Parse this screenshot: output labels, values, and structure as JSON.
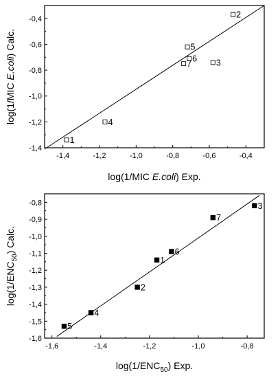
{
  "chart_data": [
    {
      "type": "scatter",
      "marker": "open-square",
      "xlabel": {
        "prefix": "log(1/MIC ",
        "italic": "E.coli",
        "suffix": ") Exp."
      },
      "ylabel": {
        "prefix": "log(1/MIC ",
        "italic": "E.coli",
        "suffix": ") Calc."
      },
      "xlim": [
        -1.5,
        -0.3
      ],
      "ylim": [
        -1.4,
        -0.3
      ],
      "xticks": [
        "-1,4",
        "-1,2",
        "-1,0",
        "-0,8",
        "-0,6",
        "-0,4"
      ],
      "xtick_values": [
        -1.4,
        -1.2,
        -1.0,
        -0.8,
        -0.6,
        -0.4
      ],
      "yticks": [
        "-1,4",
        "-1,2",
        "-1,0",
        "-0,8",
        "-0,6",
        "-0,4"
      ],
      "ytick_values": [
        -1.4,
        -1.2,
        -1.0,
        -0.8,
        -0.6,
        -0.4
      ],
      "grid": false,
      "points": [
        {
          "label": "1",
          "x": -1.38,
          "y": -1.34
        },
        {
          "label": "2",
          "x": -0.47,
          "y": -0.37
        },
        {
          "label": "3",
          "x": -0.58,
          "y": -0.74
        },
        {
          "label": "4",
          "x": -1.17,
          "y": -1.2
        },
        {
          "label": "5",
          "x": -0.72,
          "y": -0.62
        },
        {
          "label": "6",
          "x": -0.71,
          "y": -0.71
        },
        {
          "label": "7",
          "x": -0.74,
          "y": -0.75
        }
      ],
      "fit_line": {
        "x": [
          -1.5,
          -0.3
        ],
        "y": [
          -1.41,
          -0.3
        ]
      }
    },
    {
      "type": "scatter",
      "marker": "filled-square",
      "xlabel": {
        "prefix": "log(1/ENC",
        "sub": "50",
        "suffix": ") Exp."
      },
      "ylabel": {
        "prefix": "log(1/ENC",
        "sub": "50",
        "suffix": ") Calc."
      },
      "xlim": [
        -1.63,
        -0.73
      ],
      "ylim": [
        -1.6,
        -0.75
      ],
      "xticks": [
        "-1,6",
        "-1,4",
        "-1,2",
        "-1,0",
        "-0,8"
      ],
      "xtick_values": [
        -1.6,
        -1.4,
        -1.2,
        -1.0,
        -0.8
      ],
      "yticks": [
        "-1,6",
        "-1,5",
        "-1,4",
        "-1,3",
        "-1,2",
        "-1,1",
        "-1,0",
        "-0,9",
        "-0,8"
      ],
      "ytick_values": [
        -1.6,
        -1.5,
        -1.4,
        -1.3,
        -1.2,
        -1.1,
        -1.0,
        -0.9,
        -0.8
      ],
      "grid": false,
      "points": [
        {
          "label": "1",
          "x": -1.17,
          "y": -1.14
        },
        {
          "label": "2",
          "x": -1.25,
          "y": -1.3
        },
        {
          "label": "3",
          "x": -0.77,
          "y": -0.82
        },
        {
          "label": "4",
          "x": -1.44,
          "y": -1.45
        },
        {
          "label": "5",
          "x": -1.55,
          "y": -1.53
        },
        {
          "label": "6",
          "x": -1.11,
          "y": -1.09
        },
        {
          "label": "7",
          "x": -0.94,
          "y": -0.89
        }
      ],
      "fit_line": {
        "x": [
          -1.58,
          -0.75
        ],
        "y": [
          -1.59,
          -0.76
        ]
      }
    }
  ]
}
